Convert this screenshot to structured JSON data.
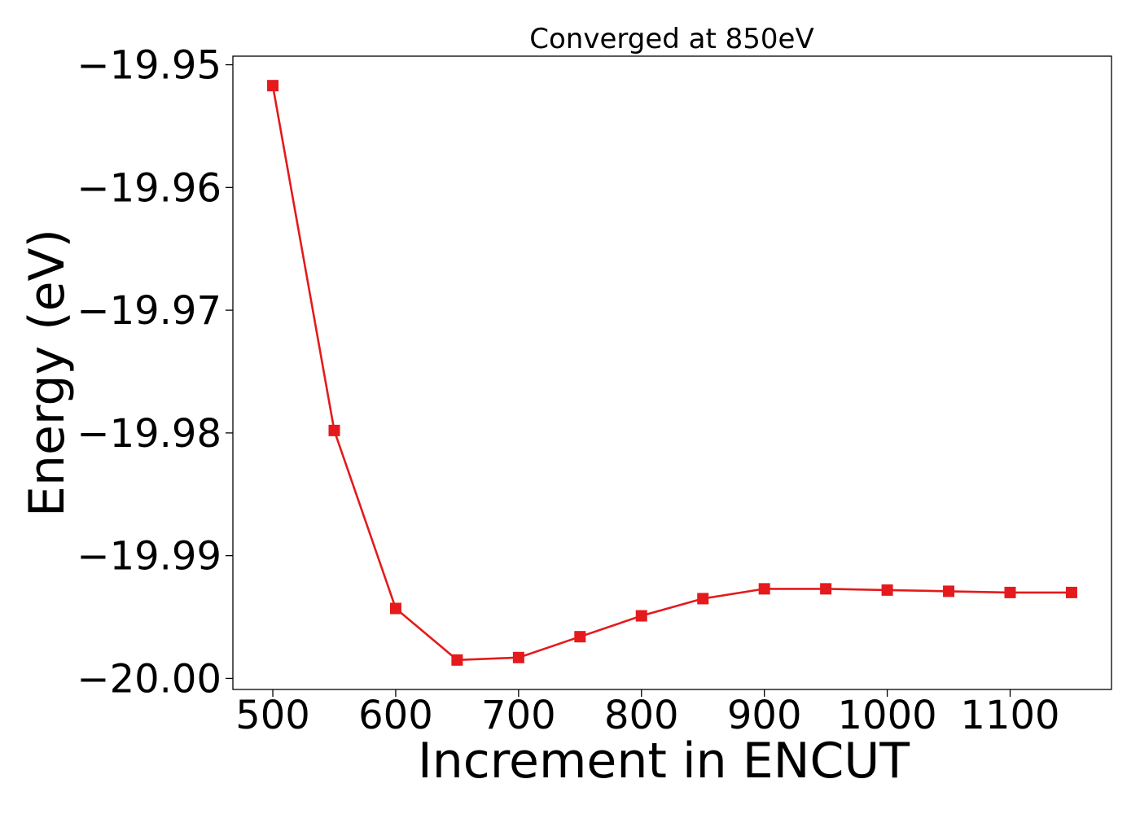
{
  "chart_data": {
    "type": "line",
    "title": "Converged at 850eV",
    "xlabel": "Increment in ENCUT",
    "ylabel": "Energy (eV)",
    "x": [
      500,
      550,
      600,
      650,
      700,
      750,
      800,
      850,
      900,
      950,
      1000,
      1050,
      1100,
      1150
    ],
    "series": [
      {
        "values": [
          -19.9517,
          -19.9798,
          -19.9943,
          -19.9985,
          -19.9983,
          -19.9966,
          -19.9949,
          -19.9935,
          -19.9927,
          -19.9927,
          -19.9928,
          -19.9929,
          -19.993,
          -19.993
        ],
        "color": "#e41a1c",
        "marker": "square"
      }
    ],
    "xticks": [
      500,
      600,
      700,
      800,
      900,
      1000,
      1100
    ],
    "xtick_labels": [
      "500",
      "600",
      "700",
      "800",
      "900",
      "1000",
      "1100"
    ],
    "yticks": [
      -19.95,
      -19.96,
      -19.97,
      -19.98,
      -19.99,
      -20.0
    ],
    "ytick_labels": [
      "−19.95",
      "−19.96",
      "−19.97",
      "−19.98",
      "−19.99",
      "−20.00"
    ],
    "xlim": [
      467.5,
      1182.5
    ],
    "ylim": [
      -20.0009,
      -19.9493
    ],
    "grid": false,
    "legend": "none"
  }
}
